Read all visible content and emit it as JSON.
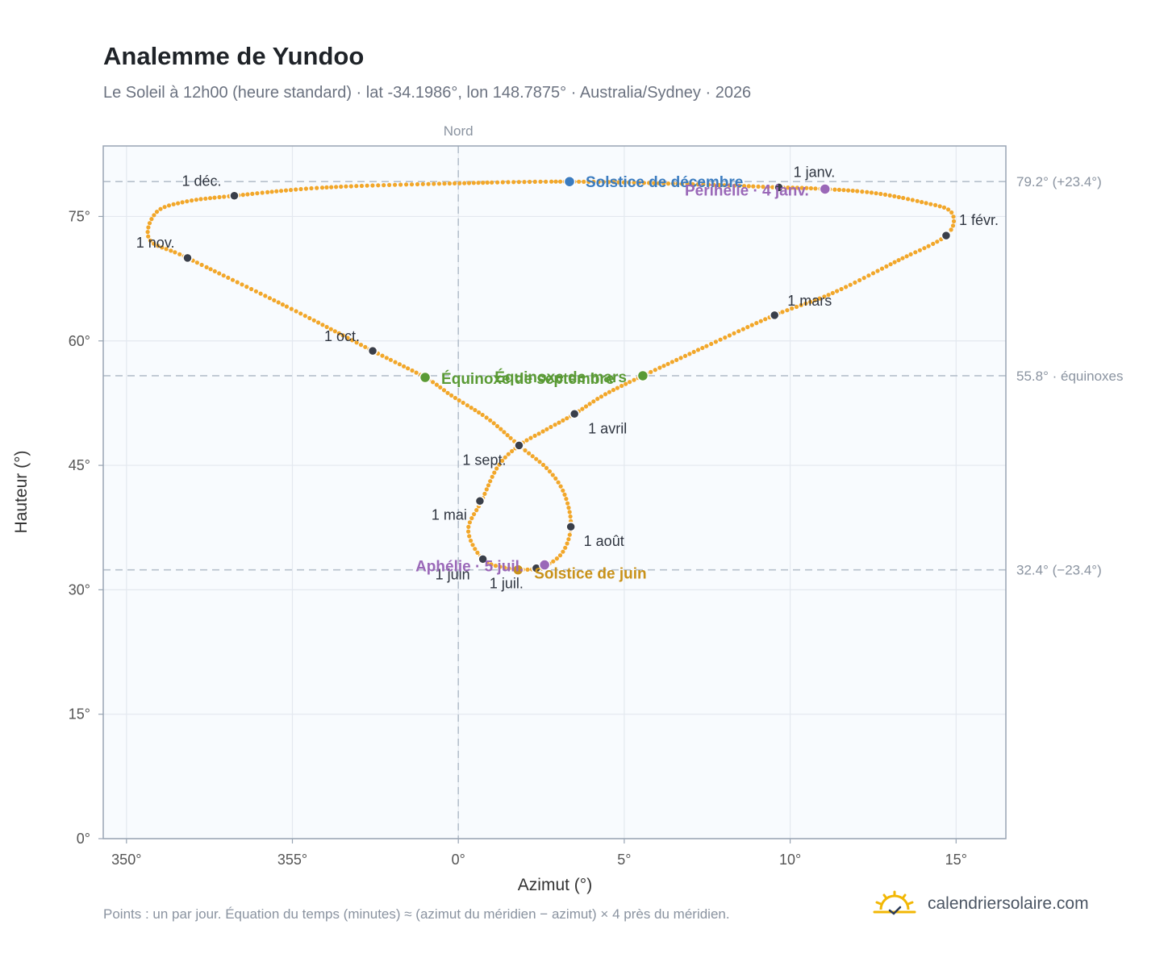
{
  "header": {
    "title": "Analemme de Yundoo",
    "subtitle": "Le Soleil à 12h00 (heure standard) · lat -34.1986°, lon 148.7875° · Australia/Sydney · 2026"
  },
  "footer": {
    "note": "Points : un par jour. Équation du temps (minutes) ≈ (azimut du méridien − azimut) × 4 près du méridien.",
    "brand": "calendriersolaire.com",
    "brand_icon": "sun-icon"
  },
  "colors": {
    "curve": "#f2a72a",
    "month_marker": "#3a3f4a",
    "solstice_december": "#3b7cc0",
    "solstice_june": "#c9921a",
    "equinox": "#5a9a35",
    "apsis": "#9a68b8",
    "plot_background": "#f8fbfe",
    "grid": "#e3e8ef",
    "reference_line": "#b6c0cc",
    "axis": "#98a4b3"
  },
  "chart_data": {
    "type": "scatter",
    "title": "Analemme de Yundoo",
    "xlabel": "Azimut (°)",
    "ylabel": "Hauteur (°)",
    "xlim": [
      349.3,
      16.5
    ],
    "ylim": [
      0,
      83.5
    ],
    "x_ticks": [
      {
        "value": 350,
        "label": "350°"
      },
      {
        "value": 355,
        "label": "355°"
      },
      {
        "value": 0,
        "label": "0°"
      },
      {
        "value": 5,
        "label": "5°"
      },
      {
        "value": 10,
        "label": "10°"
      },
      {
        "value": 15,
        "label": "15°"
      }
    ],
    "y_ticks": [
      {
        "value": 0,
        "label": "0°"
      },
      {
        "value": 15,
        "label": "15°"
      },
      {
        "value": 30,
        "label": "30°"
      },
      {
        "value": 45,
        "label": "45°"
      },
      {
        "value": 60,
        "label": "60°"
      },
      {
        "value": 75,
        "label": "75°"
      }
    ],
    "grid": true,
    "north_line": {
      "azimuth": 0,
      "label": "Nord"
    },
    "reference_lines": [
      {
        "altitude": 79.2,
        "label": "79.2° (+23.4°)"
      },
      {
        "altitude": 55.8,
        "label": "55.8° · équinoxes"
      },
      {
        "altitude": 32.4,
        "label": "32.4° (−23.4°)"
      }
    ],
    "series": [
      {
        "points": [
          [
            9.66,
            78.5
          ],
          [
            10.6,
            78.4
          ],
          [
            12.4,
            77.9
          ],
          [
            14.0,
            76.7
          ],
          [
            14.86,
            75.5
          ],
          [
            14.7,
            72.7
          ],
          [
            13.2,
            69.6
          ],
          [
            11.3,
            65.8
          ],
          [
            9.53,
            63.1
          ],
          [
            7.6,
            59.6
          ],
          [
            5.56,
            55.8
          ],
          [
            4.4,
            53.5
          ],
          [
            3.5,
            51.2
          ],
          [
            2.6,
            49.2
          ],
          [
            1.83,
            47.4
          ],
          [
            1.2,
            44.9
          ],
          [
            0.7,
            40.7
          ],
          [
            0.3,
            37.2
          ],
          [
            0.74,
            33.7
          ],
          [
            1.5,
            32.6
          ],
          [
            2.4,
            32.6
          ],
          [
            3.1,
            34.3
          ],
          [
            3.39,
            37.6
          ],
          [
            3.2,
            41.5
          ],
          [
            2.7,
            44.5
          ],
          [
            1.83,
            47.4
          ],
          [
            0.9,
            50.6
          ],
          [
            -0.2,
            53.4
          ],
          [
            -1.0,
            55.6
          ],
          [
            -2.58,
            58.8
          ],
          [
            -5.0,
            63.8
          ],
          [
            -8.16,
            70.0
          ],
          [
            -9.3,
            72.2
          ],
          [
            -9.1,
            75.5
          ],
          [
            -8.2,
            76.8
          ],
          [
            -6.75,
            77.5
          ],
          [
            -4.0,
            78.5
          ],
          [
            0.0,
            79.0
          ],
          [
            3.35,
            79.2
          ],
          [
            7.0,
            78.9
          ],
          [
            9.66,
            78.5
          ]
        ]
      }
    ],
    "month_markers": [
      {
        "label": "1 janv.",
        "azimuth": 9.66,
        "altitude": 78.5
      },
      {
        "label": "1 févr.",
        "azimuth": 14.7,
        "altitude": 72.7
      },
      {
        "label": "1 mars",
        "azimuth": 9.53,
        "altitude": 63.1
      },
      {
        "label": "1 avril",
        "azimuth": 3.5,
        "altitude": 51.2
      },
      {
        "label": "1 mai",
        "azimuth": 0.65,
        "altitude": 40.7
      },
      {
        "label": "1 juin",
        "azimuth": 0.74,
        "altitude": 33.7
      },
      {
        "label": "1 juil.",
        "azimuth": 2.35,
        "altitude": 32.6
      },
      {
        "label": "1 août",
        "azimuth": 3.39,
        "altitude": 37.6
      },
      {
        "label": "1 sept.",
        "azimuth": 1.83,
        "altitude": 47.4
      },
      {
        "label": "1 oct.",
        "azimuth": -2.58,
        "altitude": 58.8
      },
      {
        "label": "1 nov.",
        "azimuth": -8.16,
        "altitude": 70.0
      },
      {
        "label": "1 déc.",
        "azimuth": -6.75,
        "altitude": 77.5
      }
    ],
    "events": [
      {
        "label": "Solstice de décembre",
        "azimuth": 3.35,
        "altitude": 79.2,
        "color": "#3b7cc0"
      },
      {
        "label": "Périhélie · 4 janv.",
        "azimuth": 11.05,
        "altitude": 78.3,
        "color": "#9a68b8"
      },
      {
        "label": "Équinoxe de mars",
        "azimuth": 5.56,
        "altitude": 55.8,
        "color": "#5a9a35"
      },
      {
        "label": "Équinoxe de septembre",
        "azimuth": -1.0,
        "altitude": 55.6,
        "color": "#5a9a35"
      },
      {
        "label": "Solstice de juin",
        "azimuth": 1.8,
        "altitude": 32.4,
        "color": "#c9921a"
      },
      {
        "label": "Aphélie · 5 juil.",
        "azimuth": 2.6,
        "altitude": 33.0,
        "color": "#9a68b8"
      }
    ]
  }
}
